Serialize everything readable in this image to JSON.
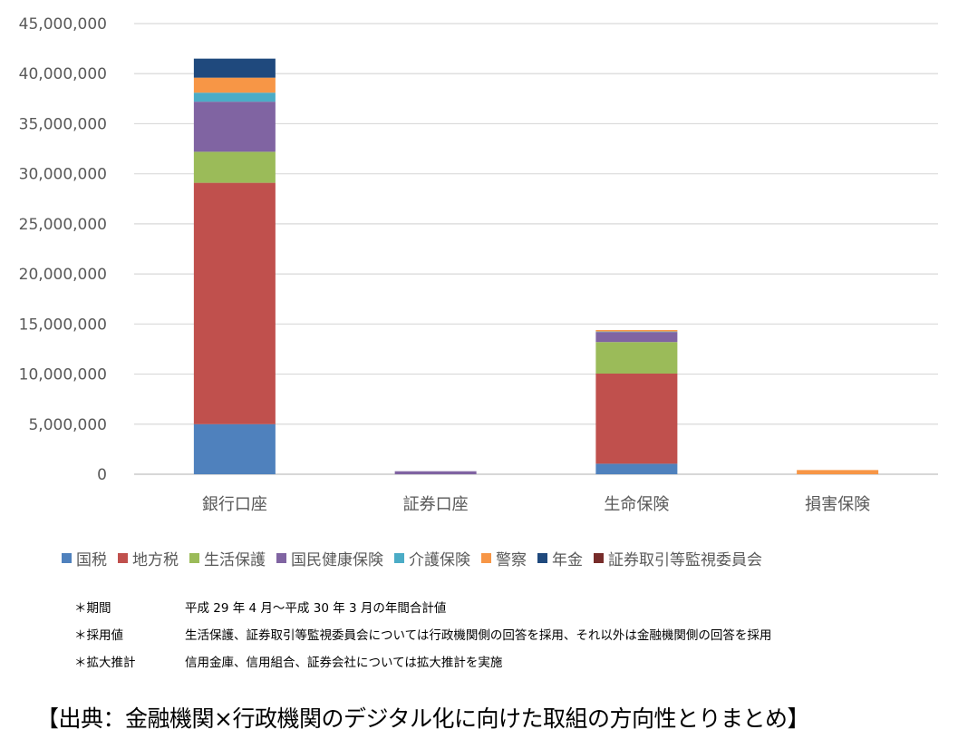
{
  "chart_data": {
    "type": "bar",
    "stacked": true,
    "categories": [
      "銀行口座",
      "証券口座",
      "生命保険",
      "損害保険"
    ],
    "series": [
      {
        "name": "国税",
        "color": "#4f81bd",
        "values": [
          5000000,
          0,
          1050000,
          0
        ]
      },
      {
        "name": "地方税",
        "color": "#c0504d",
        "values": [
          24100000,
          0,
          9000000,
          0
        ]
      },
      {
        "name": "生活保護",
        "color": "#9bbb59",
        "values": [
          3100000,
          0,
          3150000,
          0
        ]
      },
      {
        "name": "国民健康保険",
        "color": "#8064a2",
        "values": [
          5000000,
          300000,
          1000000,
          0
        ]
      },
      {
        "name": "介護保険",
        "color": "#4bacc6",
        "values": [
          900000,
          0,
          50000,
          0
        ]
      },
      {
        "name": "警察",
        "color": "#f79646",
        "values": [
          1500000,
          0,
          150000,
          420000
        ]
      },
      {
        "name": "年金",
        "color": "#1f497d",
        "values": [
          1900000,
          0,
          0,
          0
        ]
      },
      {
        "name": "証券取引等監視委員会",
        "color": "#772c2a",
        "values": [
          0,
          0,
          0,
          0
        ]
      }
    ],
    "yticks": [
      "0",
      "5,000,000",
      "10,000,000",
      "15,000,000",
      "20,000,000",
      "25,000,000",
      "30,000,000",
      "35,000,000",
      "40,000,000",
      "45,000,000"
    ],
    "ylim": [
      0,
      45000000
    ],
    "grid": true,
    "legend": "bottom"
  },
  "notes": [
    {
      "key": "＊期間",
      "value": "平成 29 年 4 月～平成 30 年 3 月の年間合計値"
    },
    {
      "key": "＊採用値",
      "value": "生活保護、証券取引等監視委員会については行政機関側の回答を採用、それ以外は金融機関側の回答を採用"
    },
    {
      "key": "＊拡大推計",
      "value": "信用金庫、信用組合、証券会社については拡大推計を実施"
    }
  ],
  "source": "【出典：金融機関×行政機関のデジタル化に向けた取組の方向性とりまとめ】"
}
